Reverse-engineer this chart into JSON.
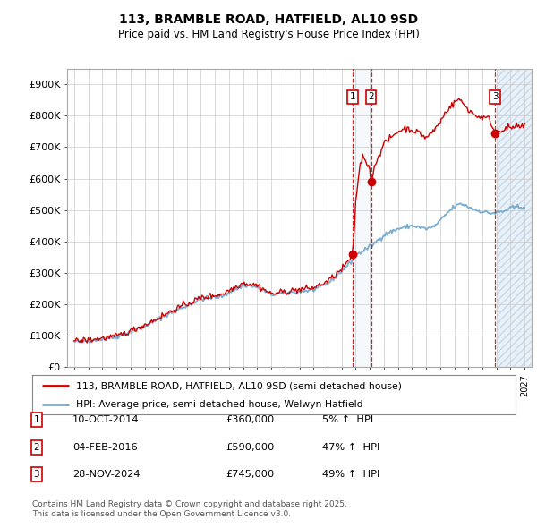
{
  "title": "113, BRAMBLE ROAD, HATFIELD, AL10 9SD",
  "subtitle": "Price paid vs. HM Land Registry's House Price Index (HPI)",
  "ylabel_ticks": [
    "£0",
    "£100K",
    "£200K",
    "£300K",
    "£400K",
    "£500K",
    "£600K",
    "£700K",
    "£800K",
    "£900K"
  ],
  "ytick_values": [
    0,
    100000,
    200000,
    300000,
    400000,
    500000,
    600000,
    700000,
    800000,
    900000
  ],
  "xlim": [
    1994.5,
    2027.5
  ],
  "ylim": [
    0,
    950000
  ],
  "transactions": [
    {
      "label": "1",
      "date": "10-OCT-2014",
      "year": 2014.78,
      "price": 360000,
      "pct": "5%",
      "direction": "↑"
    },
    {
      "label": "2",
      "date": "04-FEB-2016",
      "year": 2016.09,
      "price": 590000,
      "pct": "47%",
      "direction": "↑"
    },
    {
      "label": "3",
      "date": "28-NOV-2024",
      "year": 2024.91,
      "price": 745000,
      "pct": "49%",
      "direction": "↑"
    }
  ],
  "legend_line1": "113, BRAMBLE ROAD, HATFIELD, AL10 9SD (semi-detached house)",
  "legend_line2": "HPI: Average price, semi-detached house, Welwyn Hatfield",
  "footer": "Contains HM Land Registry data © Crown copyright and database right 2025.\nThis data is licensed under the Open Government Licence v3.0.",
  "red_color": "#cc0000",
  "blue_color": "#7aadcf",
  "hatch_start_year": 2025.0,
  "background_color": "#ffffff",
  "grid_color": "#cccccc"
}
